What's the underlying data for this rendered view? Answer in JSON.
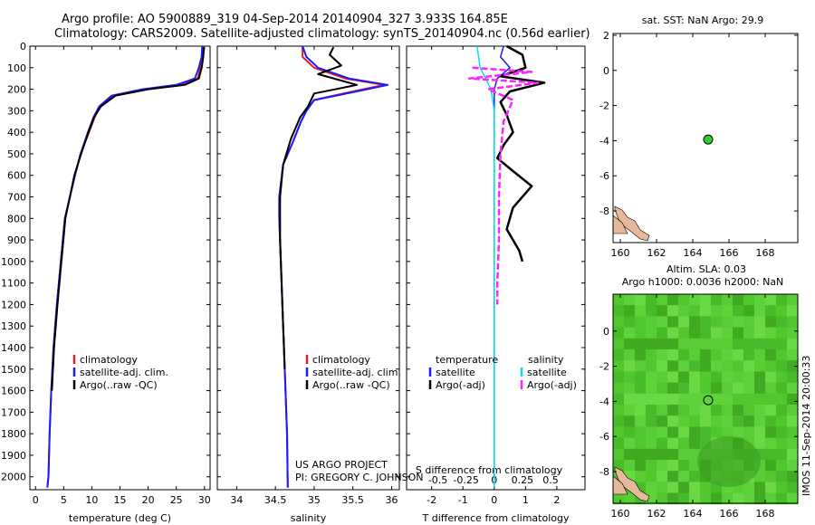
{
  "header": {
    "title_line1": "Argo profile: AO 5900889_319 04-Sep-2014 20140904_327 3.933S 164.85E",
    "title_line2": "Climatology: CARS2009. Satellite-adjusted climatology: synTS_20140904.nc (0.56d earlier)"
  },
  "credits": {
    "project": "US ARGO PROJECT",
    "pi": "PI: GREGORY C. JOHNSON"
  },
  "side_label": "IMOS 11-Sep-2014 20:00:33",
  "colors": {
    "climatology": "#e02020",
    "satellite": "#1a1aff",
    "argo": "#000000",
    "sal_satellite": "#00e5e5",
    "sal_argo": "#ff22ff",
    "sla_field": "#55cc33",
    "land": "#e8b89a",
    "marker": "#33cc33"
  },
  "chart_data": [
    {
      "type": "line",
      "name": "temperature-profile",
      "xlabel": "temperature (deg C)",
      "xlim": [
        -1,
        31
      ],
      "xticks": [
        0,
        5,
        10,
        15,
        20,
        25,
        30
      ],
      "ylim": [
        2060,
        0
      ],
      "yticks": [
        0,
        100,
        200,
        300,
        400,
        500,
        600,
        700,
        800,
        900,
        1000,
        1100,
        1200,
        1300,
        1400,
        1500,
        1600,
        1700,
        1800,
        1900,
        2000
      ],
      "legend": [
        "climatology",
        "satellite-adj. clim.",
        "Argo(..raw -QC)"
      ],
      "legend_position": "lower-left",
      "series": [
        {
          "name": "climatology",
          "x": [
            29.8,
            29.7,
            29.3,
            28.8,
            26,
            20,
            14,
            11.5,
            10.5,
            9.5,
            8,
            7,
            5.2,
            4.5,
            3.8,
            3.2,
            2.8,
            2.5,
            2.3,
            2.1
          ],
          "y": [
            0,
            50,
            100,
            150,
            180,
            200,
            230,
            280,
            330,
            400,
            500,
            600,
            800,
            1000,
            1200,
            1400,
            1600,
            1800,
            2000,
            2050
          ]
        },
        {
          "name": "satellite-adj. clim.",
          "x": [
            29.6,
            29.5,
            29,
            28.3,
            25,
            19,
            13.5,
            11.3,
            10.3,
            9.3,
            8,
            7,
            5.2,
            4.5,
            3.8,
            3.2,
            2.8,
            2.5,
            2.3,
            2.1
          ],
          "y": [
            0,
            50,
            100,
            150,
            180,
            200,
            230,
            280,
            330,
            400,
            500,
            600,
            800,
            1000,
            1200,
            1400,
            1600,
            1800,
            2000,
            2050
          ]
        },
        {
          "name": "Argo(..raw -QC)",
          "x": [
            29.9,
            29.8,
            29.5,
            29,
            26.5,
            20,
            14.2,
            11.6,
            10.4,
            9.4,
            8.1,
            6.9,
            5.3,
            4.6,
            3.9,
            3.3,
            2.9
          ],
          "y": [
            5,
            50,
            100,
            150,
            180,
            200,
            230,
            280,
            330,
            400,
            500,
            600,
            800,
            1000,
            1200,
            1400,
            1600
          ]
        }
      ]
    },
    {
      "type": "line",
      "name": "salinity-profile",
      "xlabel": "salinity",
      "xlim": [
        33.75,
        36.1
      ],
      "xticks": [
        34,
        34.5,
        35,
        35.5,
        36
      ],
      "ylim": [
        2060,
        0
      ],
      "legend": [
        "climatology",
        "satellite-adj. clim.",
        "Argo(..raw -QC)"
      ],
      "legend_position": "lower-left",
      "series": [
        {
          "name": "climatology",
          "x": [
            34.85,
            34.85,
            35.0,
            35.4,
            35.9,
            35.5,
            35.0,
            34.9,
            34.83,
            34.72,
            34.6,
            34.55,
            34.55,
            34.57,
            34.59,
            34.61,
            34.63,
            34.65,
            34.66
          ],
          "y": [
            0,
            50,
            100,
            150,
            180,
            210,
            250,
            300,
            350,
            450,
            550,
            700,
            800,
            1000,
            1200,
            1400,
            1600,
            1800,
            2050
          ]
        },
        {
          "name": "satellite-adj. clim.",
          "x": [
            34.85,
            34.9,
            35.05,
            35.45,
            35.95,
            35.55,
            35.0,
            34.9,
            34.83,
            34.72,
            34.6,
            34.55,
            34.55,
            34.57,
            34.59,
            34.61,
            34.63,
            34.65,
            34.66
          ],
          "y": [
            0,
            50,
            100,
            150,
            180,
            210,
            250,
            300,
            350,
            450,
            550,
            700,
            800,
            1000,
            1200,
            1400,
            1600,
            1800,
            2050
          ]
        },
        {
          "name": "Argo(..raw -QC)",
          "x": [
            35.25,
            35.2,
            35.35,
            35.05,
            35.55,
            35.0,
            34.92,
            34.82,
            34.7,
            34.6,
            34.56,
            34.56,
            34.58,
            34.6,
            34.62
          ],
          "y": [
            5,
            40,
            90,
            130,
            180,
            220,
            280,
            330,
            430,
            550,
            700,
            900,
            1100,
            1300,
            1500
          ]
        }
      ]
    },
    {
      "type": "line",
      "name": "difference-profile",
      "xlabel": "T difference from climatology",
      "xlabel_top": "S difference from climatology",
      "xlim": [
        -2.8,
        2.9
      ],
      "xticks": [
        -2,
        -1,
        0,
        1,
        2
      ],
      "top_ticks": [
        "-0.5",
        "-0.25",
        "0",
        "0.25",
        "0.5"
      ],
      "ylim": [
        2060,
        0
      ],
      "legend": [
        "temperature",
        "satellite",
        "Argo(-adj)",
        "salinity",
        "satellite",
        "Argo(-adj)"
      ],
      "legend_position": "lower-center",
      "series": [
        {
          "name": "temperature satellite",
          "x": [
            0.3,
            0.2,
            0.5,
            0.1,
            0,
            0,
            0,
            0,
            0
          ],
          "y": [
            0,
            50,
            100,
            150,
            200,
            300,
            500,
            1000,
            2050
          ]
        },
        {
          "name": "temperature Argo(-adj)",
          "x": [
            0.4,
            0.9,
            1.0,
            0.2,
            1.6,
            0.5,
            0.2,
            0.4,
            0.6,
            0.3,
            0.1,
            0.6,
            1.2,
            0.6,
            0.4,
            0.8,
            0.9
          ],
          "y": [
            0,
            40,
            100,
            140,
            170,
            210,
            260,
            320,
            400,
            460,
            520,
            580,
            650,
            750,
            850,
            950,
            1000
          ]
        },
        {
          "name": "salinity satellite",
          "x": [
            -0.55,
            -0.45,
            -0.1,
            0,
            0,
            0
          ],
          "y": [
            0,
            100,
            200,
            300,
            500,
            2050
          ]
        },
        {
          "name": "salinity Argo(-adj)",
          "x": [
            -0.7,
            1.2,
            -0.8,
            1.4,
            -0.2,
            0.6,
            0.3,
            0.2,
            0.15,
            0.15,
            0.1,
            0.1
          ],
          "y": [
            100,
            120,
            150,
            170,
            200,
            250,
            350,
            500,
            700,
            900,
            1100,
            1200
          ]
        }
      ]
    },
    {
      "type": "scatter",
      "name": "sst-map",
      "title": "sat. SST: NaN Argo: 29.9",
      "xlim": [
        159.6,
        169.8
      ],
      "ylim": [
        -9.8,
        2.1
      ],
      "xticks": [
        160,
        162,
        164,
        166,
        168
      ],
      "yticks": [
        2,
        0,
        -2,
        -4,
        -6,
        -8
      ],
      "points": [
        {
          "x": 164.85,
          "y": -3.933
        }
      ]
    },
    {
      "type": "heatmap",
      "name": "sla-map",
      "title": "Altim. SLA: 0.03",
      "subtitle": "Argo h1000: 0.0036 h2000: NaN",
      "xlim": [
        159.6,
        169.8
      ],
      "ylim": [
        -9.8,
        2.1
      ],
      "xticks": [
        160,
        162,
        164,
        166,
        168
      ],
      "yticks": [
        0,
        -2,
        -4,
        -6,
        -8
      ],
      "points": [
        {
          "x": 164.85,
          "y": -3.933
        }
      ]
    }
  ]
}
